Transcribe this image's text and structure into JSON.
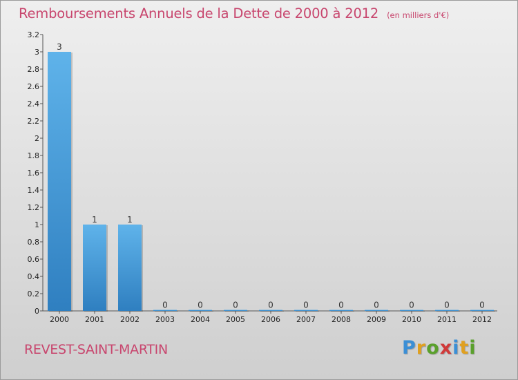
{
  "chart_data": {
    "type": "bar",
    "title": "Remboursements Annuels de la Dette de 2000 à 2012",
    "unit_label": "(en milliers d'€)",
    "categories": [
      "2000",
      "2001",
      "2002",
      "2003",
      "2004",
      "2005",
      "2006",
      "2007",
      "2008",
      "2009",
      "2010",
      "2011",
      "2012"
    ],
    "values": [
      3,
      1,
      1,
      0,
      0,
      0,
      0,
      0,
      0,
      0,
      0,
      0,
      0
    ],
    "data_labels": [
      "3",
      "1",
      "1",
      "0",
      "0",
      "0",
      "0",
      "0",
      "0",
      "0",
      "0",
      "0",
      "0"
    ],
    "y_ticks": [
      0,
      0.2,
      0.4,
      0.6,
      0.8,
      1,
      1.2,
      1.4,
      1.6,
      1.8,
      2,
      2.2,
      2.4,
      2.6,
      2.8,
      3,
      3.2
    ],
    "y_tick_labels": [
      "0",
      "0.2",
      "0.4",
      "0.6",
      "0.8",
      "1",
      "1.2",
      "1.4",
      "1.6",
      "1.8",
      "2",
      "2.2",
      "2.4",
      "2.6",
      "2.8",
      "3",
      "3.2"
    ],
    "ylim": [
      0,
      3.2
    ],
    "xlabel": "",
    "ylabel": "",
    "bar_color": "#4aa3e0",
    "grid": false
  },
  "place_name": "REVEST-SAINT-MARTIN",
  "logo": {
    "letters": [
      "P",
      "r",
      "o",
      "x",
      "i",
      "t",
      "i"
    ],
    "colors": [
      "#3b8fd6",
      "#e0a020",
      "#5aa02c",
      "#d03a3a",
      "#3b8fd6",
      "#e0a020",
      "#5aa02c"
    ]
  }
}
